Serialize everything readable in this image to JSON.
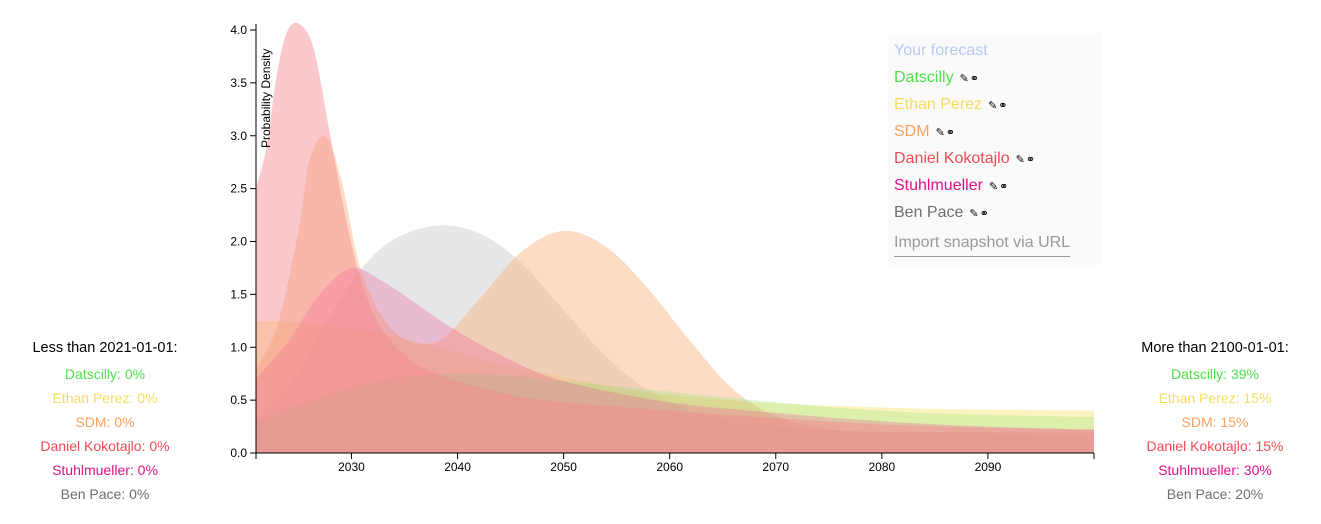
{
  "chart_data": {
    "type": "area",
    "ylabel": "Probability Density",
    "xlim": [
      2021,
      2100
    ],
    "ylim": [
      0,
      4.0
    ],
    "x_ticks": [
      2030,
      2040,
      2050,
      2060,
      2070,
      2080,
      2090
    ],
    "y_ticks": [
      0.0,
      0.5,
      1.0,
      1.5,
      2.0,
      2.5,
      3.0,
      3.5,
      4.0
    ],
    "y_tick_labels": [
      "0.0",
      "0.5",
      "1.0",
      "1.5",
      "2.0",
      "2.5",
      "3.0",
      "3.5",
      "4.0"
    ],
    "legend_position": "top-right",
    "series": [
      {
        "name": "Ethan Perez",
        "color": "#f8e36b",
        "opacity": 0.42,
        "x": [
          2021,
          2025,
          2030,
          2035,
          2040,
          2045,
          2050,
          2055,
          2060,
          2070,
          2080,
          2090,
          2100
        ],
        "y": [
          1.25,
          1.24,
          1.18,
          1.08,
          0.95,
          0.82,
          0.72,
          0.62,
          0.55,
          0.47,
          0.43,
          0.41,
          0.4
        ]
      },
      {
        "name": "Ben Pace",
        "color": "#b3b3b3",
        "opacity": 0.32,
        "x": [
          2021,
          2025,
          2028,
          2031,
          2034,
          2038,
          2042,
          2046,
          2050,
          2055,
          2060,
          2065,
          2070,
          2080,
          2100
        ],
        "y": [
          0.3,
          0.75,
          1.3,
          1.75,
          2.02,
          2.15,
          2.08,
          1.8,
          1.35,
          0.82,
          0.48,
          0.32,
          0.25,
          0.2,
          0.15
        ]
      },
      {
        "name": "SDM",
        "color": "#f9b27c",
        "opacity": 0.45,
        "x": [
          2021,
          2023,
          2025,
          2026,
          2027.5,
          2029,
          2031,
          2034,
          2038,
          2042,
          2046,
          2050,
          2054,
          2058,
          2062,
          2066,
          2070,
          2075,
          2080,
          2090,
          2100
        ],
        "y": [
          0.8,
          1.2,
          2.1,
          2.75,
          3.0,
          2.6,
          1.7,
          1.15,
          1.05,
          1.45,
          1.9,
          2.1,
          1.95,
          1.55,
          1.05,
          0.6,
          0.35,
          0.22,
          0.2,
          0.2,
          0.2
        ]
      },
      {
        "name": "Datscilly",
        "color": "#7de86b",
        "opacity": 0.25,
        "x": [
          2021,
          2025,
          2030,
          2035,
          2040,
          2045,
          2050,
          2060,
          2070,
          2080,
          2090,
          2100
        ],
        "y": [
          0.3,
          0.45,
          0.62,
          0.72,
          0.75,
          0.73,
          0.68,
          0.58,
          0.48,
          0.4,
          0.36,
          0.34
        ]
      },
      {
        "name": "Stuhlmueller",
        "color": "#f0569c",
        "opacity": 0.3,
        "x": [
          2021,
          2024,
          2027,
          2030,
          2033,
          2036,
          2040,
          2045,
          2050,
          2060,
          2070,
          2080,
          2090,
          2100
        ],
        "y": [
          0.7,
          1.05,
          1.5,
          1.75,
          1.62,
          1.42,
          1.15,
          0.88,
          0.68,
          0.48,
          0.38,
          0.3,
          0.25,
          0.22
        ]
      },
      {
        "name": "Daniel Kokotajlo",
        "color": "#f6888d",
        "opacity": 0.45,
        "x": [
          2021,
          2022,
          2023,
          2024,
          2025.2,
          2026.5,
          2028,
          2029.5,
          2031,
          2033,
          2036,
          2040,
          2045,
          2050,
          2060,
          2070,
          2080,
          2090,
          2100
        ],
        "y": [
          2.5,
          2.9,
          3.6,
          4.0,
          4.05,
          3.8,
          3.0,
          2.2,
          1.6,
          1.15,
          0.85,
          0.68,
          0.55,
          0.48,
          0.4,
          0.33,
          0.27,
          0.24,
          0.22
        ]
      }
    ]
  },
  "legend": {
    "your_forecast": {
      "label": "Your forecast",
      "color": "#b7c9ef"
    },
    "entries": [
      {
        "label": "Datscilly",
        "color": "#4fe14a",
        "icons": "✎⚭"
      },
      {
        "label": "Ethan Perez",
        "color": "#f8dc5e",
        "icons": "✎⚭"
      },
      {
        "label": "SDM",
        "color": "#f6a25e",
        "icons": "✎⚭"
      },
      {
        "label": "Daniel Kokotajlo",
        "color": "#ee4b55",
        "icons": "✎⚭"
      },
      {
        "label": "Stuhlmueller",
        "color": "#e0138a",
        "icons": "✎⚭"
      },
      {
        "label": "Ben Pace",
        "color": "#6e6e6e",
        "icons": "✎⚭"
      }
    ],
    "import_label": "Import snapshot via URL"
  },
  "left_panel": {
    "heading": "Less than 2021-01-01:",
    "rows": [
      {
        "name": "Datscilly:",
        "value": "0%",
        "color": "#4fe14a"
      },
      {
        "name": "Ethan Perez:",
        "value": "0%",
        "color": "#f8dc5e"
      },
      {
        "name": "SDM:",
        "value": "0%",
        "color": "#f6a25e"
      },
      {
        "name": "Daniel Kokotajlo:",
        "value": "0%",
        "color": "#ee4b55"
      },
      {
        "name": "Stuhlmueller:",
        "value": "0%",
        "color": "#e0138a"
      },
      {
        "name": "Ben Pace:",
        "value": "0%",
        "color": "#6e6e6e"
      }
    ]
  },
  "right_panel": {
    "heading": "More than 2100-01-01:",
    "rows": [
      {
        "name": "Datscilly:",
        "value": "39%",
        "color": "#4fe14a"
      },
      {
        "name": "Ethan Perez:",
        "value": "15%",
        "color": "#f8dc5e"
      },
      {
        "name": "SDM:",
        "value": "15%",
        "color": "#f6a25e"
      },
      {
        "name": "Daniel Kokotajlo:",
        "value": "15%",
        "color": "#ee4b55"
      },
      {
        "name": "Stuhlmueller:",
        "value": "30%",
        "color": "#e0138a"
      },
      {
        "name": "Ben Pace:",
        "value": "20%",
        "color": "#6e6e6e"
      }
    ]
  }
}
